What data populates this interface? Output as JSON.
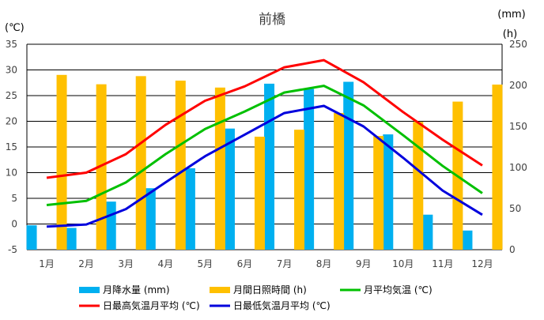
{
  "chart_data": {
    "type": "bar",
    "title": "前橋",
    "categories": [
      "1月",
      "2月",
      "3月",
      "4月",
      "5月",
      "6月",
      "7月",
      "8月",
      "9月",
      "10月",
      "11月",
      "12月"
    ],
    "left_axis": {
      "unit_label": "(℃)",
      "range": [
        -5,
        35
      ],
      "ticks": [
        -5,
        0,
        5,
        10,
        15,
        20,
        25,
        30,
        35
      ]
    },
    "right_axis": {
      "unit_label_top": "(mm)",
      "unit_label": "(h)",
      "range": [
        0,
        250
      ],
      "ticks": [
        0,
        50,
        100,
        150,
        200,
        250
      ]
    },
    "grid": true,
    "legend_placement": "bottom",
    "series": [
      {
        "name": "月降水量 (mm)",
        "kind": "bar",
        "axis": "right",
        "color": "#00b0f0",
        "values": [
          29.7,
          26.5,
          58.5,
          74.8,
          99.1,
          147.4,
          202.0,
          195.6,
          204.3,
          140.3,
          42.6,
          23.3
        ]
      },
      {
        "name": "月間日照時間 (h)",
        "kind": "bar",
        "axis": "right",
        "color": "#ffc000",
        "values": [
          212.7,
          201.3,
          211.2,
          205.7,
          197.3,
          137.5,
          146.0,
          166.4,
          138.4,
          155.5,
          180.2,
          200.9
        ]
      },
      {
        "name": "月平均気温 (℃)",
        "kind": "line",
        "axis": "left",
        "color": "#00c000",
        "values": [
          3.7,
          4.5,
          8.1,
          13.6,
          18.5,
          21.9,
          25.6,
          26.9,
          23.1,
          17.3,
          11.3,
          6.0
        ]
      },
      {
        "name": "日最高気温月平均 (℃)",
        "kind": "line",
        "axis": "left",
        "color": "#ff0000",
        "values": [
          9.0,
          10.0,
          13.6,
          19.3,
          24.0,
          26.8,
          30.5,
          31.9,
          27.6,
          21.8,
          16.4,
          11.4
        ]
      },
      {
        "name": "日最低気温月平均 (℃)",
        "kind": "line",
        "axis": "left",
        "color": "#0000dd",
        "values": [
          -0.5,
          -0.1,
          2.9,
          8.1,
          13.2,
          17.4,
          21.6,
          23.0,
          19.0,
          12.9,
          6.5,
          1.8
        ]
      }
    ]
  }
}
